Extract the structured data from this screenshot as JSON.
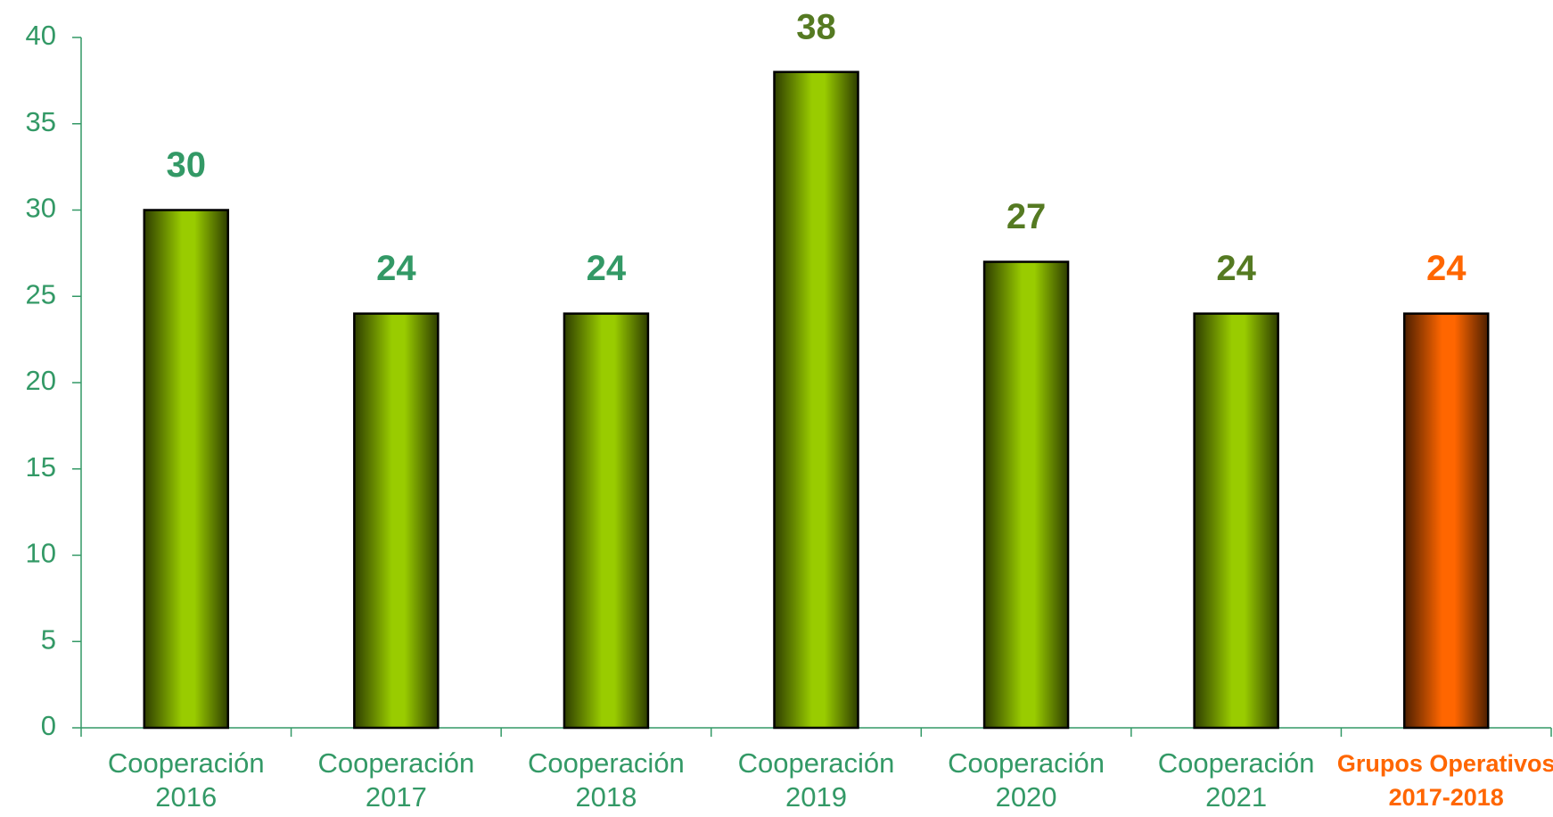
{
  "chart_data": {
    "type": "bar",
    "categories": [
      [
        "Cooperación",
        "2016"
      ],
      [
        "Cooperación",
        "2017"
      ],
      [
        "Cooperación",
        "2018"
      ],
      [
        "Cooperación",
        "2019"
      ],
      [
        "Cooperación",
        "2020"
      ],
      [
        "Cooperación",
        "2021"
      ],
      [
        "Grupos Operativos",
        "2017-2018"
      ]
    ],
    "values": [
      30,
      24,
      24,
      38,
      27,
      24,
      24
    ],
    "colors": [
      "#99cc00",
      "#99cc00",
      "#99cc00",
      "#99cc00",
      "#99cc00",
      "#99cc00",
      "#ff6600"
    ],
    "value_label_colors": [
      "#339966",
      "#339966",
      "#339966",
      "#557a22",
      "#557a22",
      "#557a22",
      "#ff6600"
    ],
    "category_label_colors": [
      "#339966",
      "#339966",
      "#339966",
      "#339966",
      "#339966",
      "#339966",
      "#ff6600"
    ],
    "tick_label_color": "#339966",
    "ylim": [
      0,
      40
    ],
    "yticks": [
      0,
      5,
      10,
      15,
      20,
      25,
      30,
      35,
      40
    ]
  }
}
